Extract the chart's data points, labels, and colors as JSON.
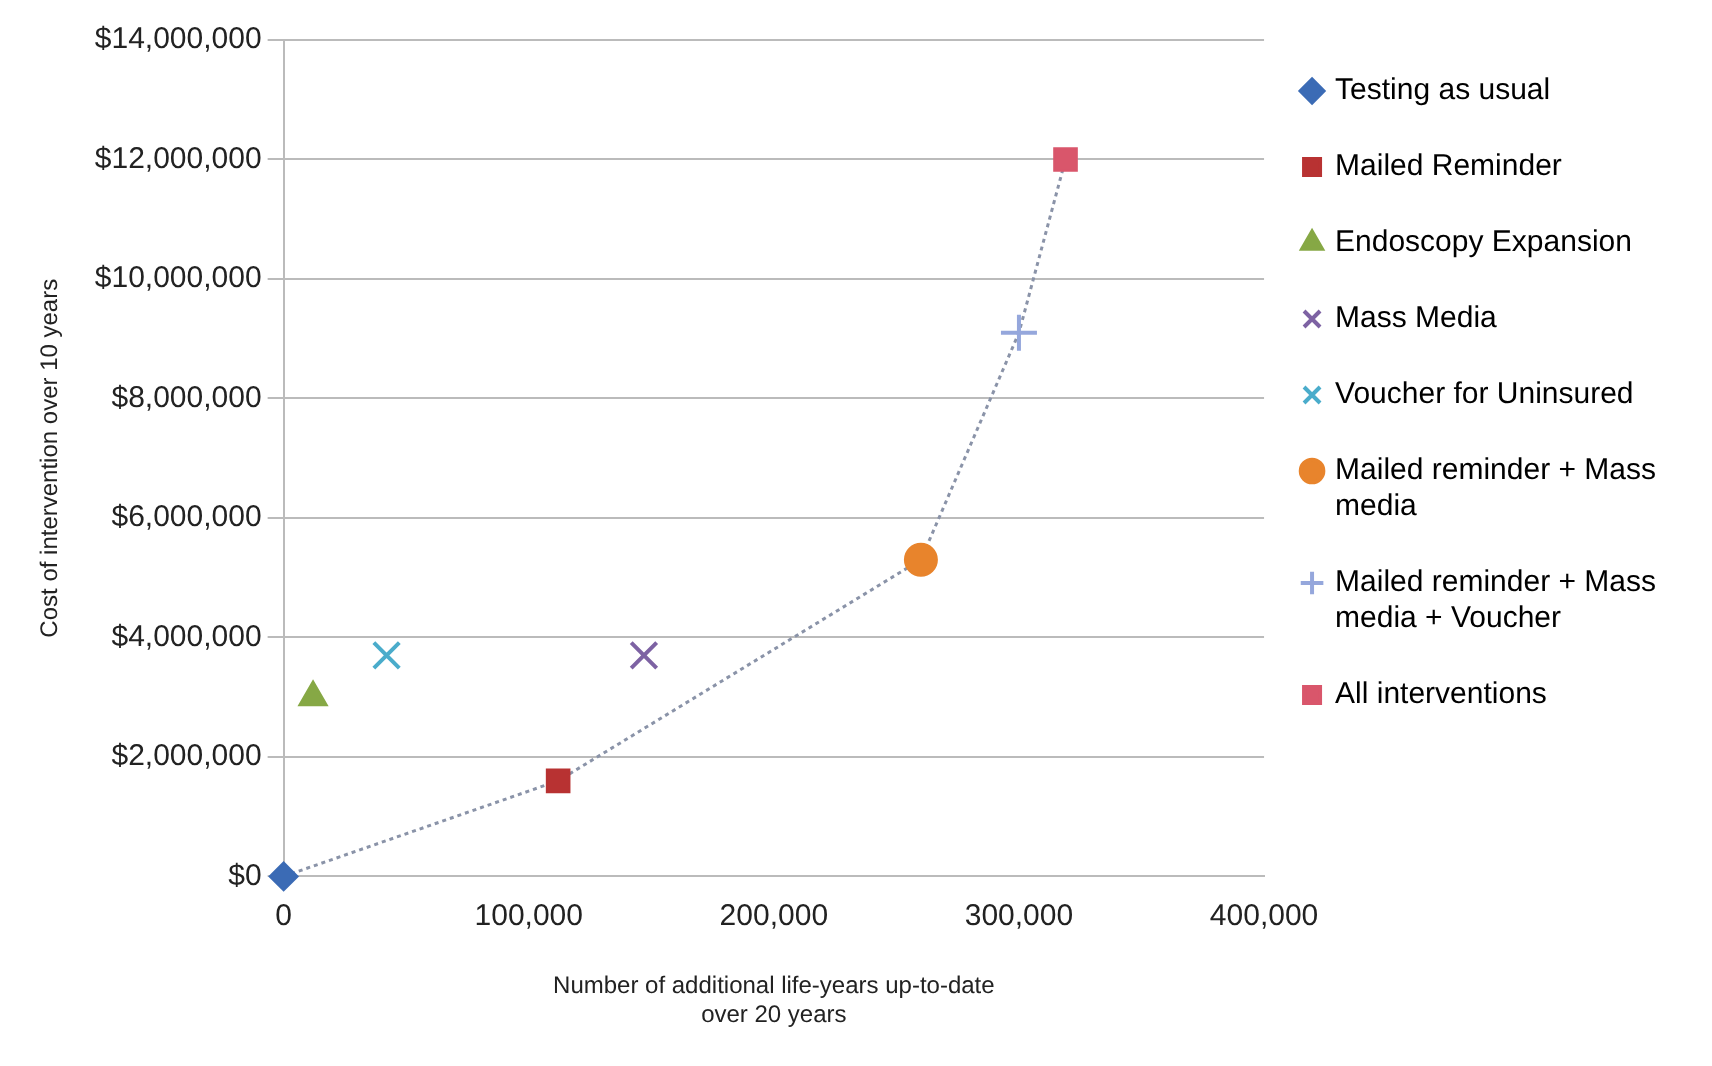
{
  "chart_data": {
    "type": "scatter",
    "xlabel": "Number of additional life-years up-to-date\nover 20 years",
    "ylabel": "Cost of intervention over 10 years",
    "xlim": [
      0,
      400000
    ],
    "xticks": [
      {
        "value": 0,
        "label": "0"
      },
      {
        "value": 100000,
        "label": "100,000"
      },
      {
        "value": 200000,
        "label": "200,000"
      },
      {
        "value": 300000,
        "label": "300,000"
      },
      {
        "value": 400000,
        "label": "400,000"
      }
    ],
    "ylim": [
      0,
      14000000
    ],
    "yticks": [
      {
        "value": 0,
        "label": "$0"
      },
      {
        "value": 2000000,
        "label": "$2,000,000"
      },
      {
        "value": 4000000,
        "label": "$4,000,000"
      },
      {
        "value": 6000000,
        "label": "$6,000,000"
      },
      {
        "value": 8000000,
        "label": "$8,000,000"
      },
      {
        "value": 10000000,
        "label": "$10,000,000"
      },
      {
        "value": 12000000,
        "label": "$12,000,000"
      },
      {
        "value": 14000000,
        "label": "$14,000,000"
      }
    ],
    "grid": "y",
    "legend": "right",
    "series": [
      {
        "type": "line",
        "color": "#8a93a8",
        "line_style": "dotted",
        "marker": "none",
        "x": [
          0,
          112000,
          260000,
          300000,
          319000
        ],
        "values": [
          0,
          1600000,
          5300000,
          9100000,
          12000000
        ]
      },
      {
        "name": "Testing as usual",
        "color": "#3b6bb5",
        "marker": "diamond",
        "x": [
          0
        ],
        "values": [
          0
        ]
      },
      {
        "name": "Mailed Reminder",
        "color": "#b83232",
        "marker": "square",
        "x": [
          112000
        ],
        "values": [
          1600000
        ]
      },
      {
        "name": "Endoscopy Expansion",
        "color": "#86a845",
        "marker": "triangle",
        "x": [
          12000
        ],
        "values": [
          3000000
        ]
      },
      {
        "name": "Mass Media",
        "color": "#7d62a3",
        "marker": "cross",
        "x": [
          147000
        ],
        "values": [
          3700000
        ]
      },
      {
        "name": "Voucher for Uninsured",
        "color": "#4aaccb",
        "marker": "cross",
        "x": [
          42000
        ],
        "values": [
          3700000
        ]
      },
      {
        "name": "Mailed reminder + Mass media",
        "color": "#e8842c",
        "marker": "circle",
        "x": [
          260000
        ],
        "values": [
          5300000
        ]
      },
      {
        "name": "Mailed reminder + Mass media + Voucher",
        "color": "#95a7dc",
        "marker": "plus",
        "x": [
          300000
        ],
        "values": [
          9100000
        ]
      },
      {
        "name": "All interventions",
        "color": "#d9566b",
        "marker": "square",
        "x": [
          319000
        ],
        "values": [
          12000000
        ]
      }
    ]
  }
}
